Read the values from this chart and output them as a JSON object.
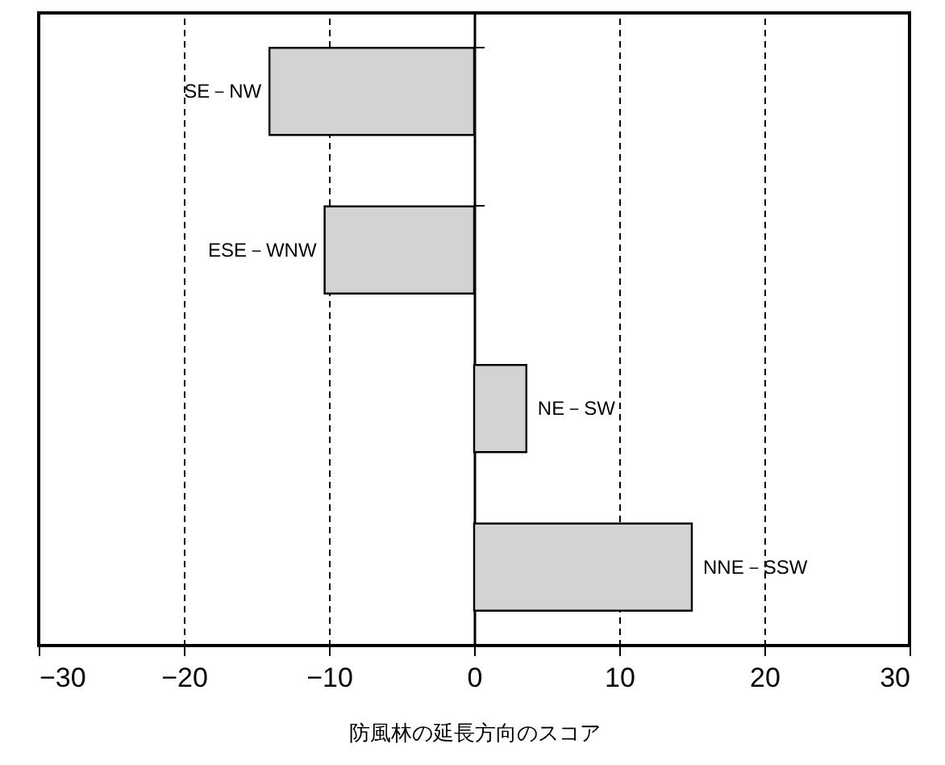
{
  "chart_data": {
    "type": "bar",
    "orientation": "horizontal",
    "xlabel": "防風林の延長方向のスコア",
    "categories": [
      "SE－NW",
      "ESE－WNW",
      "NE－SW",
      "NNE－SSW"
    ],
    "values": [
      -14.1,
      -10.3,
      3.6,
      15.0
    ],
    "color": "#d3d3d3",
    "xlim": [
      -30,
      30
    ],
    "xticks": [
      -30,
      -20,
      -10,
      0,
      10,
      20,
      30
    ],
    "grid": "x"
  }
}
